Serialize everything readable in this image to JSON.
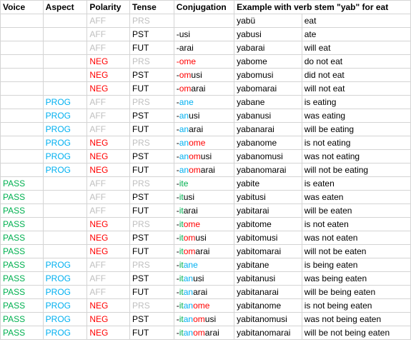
{
  "colors": {
    "pass": "#00b050",
    "prog": "#00b0f0",
    "neg": "#ff0000",
    "aff": "#bfbfbf",
    "prs": "#bfbfbf",
    "black": "#000000"
  },
  "headers": {
    "voice": "Voice",
    "aspect": "Aspect",
    "polarity": "Polarity",
    "tense": "Tense",
    "conjugation": "Conjugation",
    "example": "Example with verb stem \"yab\" for eat"
  },
  "rows": [
    {
      "voice": "",
      "aspect": "",
      "polarity": "AFF",
      "tense": "PRS",
      "conj": [],
      "example": "yabü",
      "gloss": "eat"
    },
    {
      "voice": "",
      "aspect": "",
      "polarity": "AFF",
      "tense": "PST",
      "conj": [
        [
          "-",
          "black"
        ],
        [
          "usi",
          "black"
        ]
      ],
      "example": "yabusi",
      "gloss": "ate"
    },
    {
      "voice": "",
      "aspect": "",
      "polarity": "AFF",
      "tense": "FUT",
      "conj": [
        [
          "-",
          "black"
        ],
        [
          "arai",
          "black"
        ]
      ],
      "example": "yabarai",
      "gloss": "will eat"
    },
    {
      "voice": "",
      "aspect": "",
      "polarity": "NEG",
      "tense": "PRS",
      "conj": [
        [
          "-",
          "neg"
        ],
        [
          "ome",
          "neg"
        ]
      ],
      "example": "yabome",
      "gloss": "do not eat"
    },
    {
      "voice": "",
      "aspect": "",
      "polarity": "NEG",
      "tense": "PST",
      "conj": [
        [
          "-",
          "black"
        ],
        [
          "om",
          "neg"
        ],
        [
          "usi",
          "black"
        ]
      ],
      "example": "yabomusi",
      "gloss": "did not eat"
    },
    {
      "voice": "",
      "aspect": "",
      "polarity": "NEG",
      "tense": "FUT",
      "conj": [
        [
          "-",
          "black"
        ],
        [
          "om",
          "neg"
        ],
        [
          "arai",
          "black"
        ]
      ],
      "example": "yabomarai",
      "gloss": "will not eat"
    },
    {
      "voice": "",
      "aspect": "PROG",
      "polarity": "AFF",
      "tense": "PRS",
      "conj": [
        [
          "-",
          "black"
        ],
        [
          "ane",
          "prog"
        ]
      ],
      "example": "yabane",
      "gloss": "is eating"
    },
    {
      "voice": "",
      "aspect": "PROG",
      "polarity": "AFF",
      "tense": "PST",
      "conj": [
        [
          "-",
          "black"
        ],
        [
          "an",
          "prog"
        ],
        [
          "usi",
          "black"
        ]
      ],
      "example": "yabanusi",
      "gloss": "was eating"
    },
    {
      "voice": "",
      "aspect": "PROG",
      "polarity": "AFF",
      "tense": "FUT",
      "conj": [
        [
          "-",
          "black"
        ],
        [
          "an",
          "prog"
        ],
        [
          "arai",
          "black"
        ]
      ],
      "example": "yabanarai",
      "gloss": "will be eating"
    },
    {
      "voice": "",
      "aspect": "PROG",
      "polarity": "NEG",
      "tense": "PRS",
      "conj": [
        [
          "-",
          "black"
        ],
        [
          "an",
          "prog"
        ],
        [
          "ome",
          "neg"
        ]
      ],
      "example": "yabanome",
      "gloss": "is not eating"
    },
    {
      "voice": "",
      "aspect": "PROG",
      "polarity": "NEG",
      "tense": "PST",
      "conj": [
        [
          "-",
          "black"
        ],
        [
          "an",
          "prog"
        ],
        [
          "om",
          "neg"
        ],
        [
          "usi",
          "black"
        ]
      ],
      "example": "yabanomusi",
      "gloss": "was not eating"
    },
    {
      "voice": "",
      "aspect": "PROG",
      "polarity": "NEG",
      "tense": "FUT",
      "conj": [
        [
          "-",
          "black"
        ],
        [
          "an",
          "prog"
        ],
        [
          "om",
          "neg"
        ],
        [
          "arai",
          "black"
        ]
      ],
      "example": "yabanomarai",
      "gloss": "will not be eating"
    },
    {
      "voice": "PASS",
      "aspect": "",
      "polarity": "AFF",
      "tense": "PRS",
      "conj": [
        [
          "-",
          "black"
        ],
        [
          "ite",
          "pass"
        ]
      ],
      "example": "yabite",
      "gloss": "is eaten"
    },
    {
      "voice": "PASS",
      "aspect": "",
      "polarity": "AFF",
      "tense": "PST",
      "conj": [
        [
          "-",
          "black"
        ],
        [
          "it",
          "pass"
        ],
        [
          "usi",
          "black"
        ]
      ],
      "example": "yabitusi",
      "gloss": "was eaten"
    },
    {
      "voice": "PASS",
      "aspect": "",
      "polarity": "AFF",
      "tense": "FUT",
      "conj": [
        [
          "-",
          "black"
        ],
        [
          "it",
          "pass"
        ],
        [
          "arai",
          "black"
        ]
      ],
      "example": "yabitarai",
      "gloss": "will be eaten"
    },
    {
      "voice": "PASS",
      "aspect": "",
      "polarity": "NEG",
      "tense": "PRS",
      "conj": [
        [
          "-",
          "black"
        ],
        [
          "it",
          "pass"
        ],
        [
          "ome",
          "neg"
        ]
      ],
      "example": "yabitome",
      "gloss": "is not eaten"
    },
    {
      "voice": "PASS",
      "aspect": "",
      "polarity": "NEG",
      "tense": "PST",
      "conj": [
        [
          "-",
          "black"
        ],
        [
          "it",
          "pass"
        ],
        [
          "om",
          "neg"
        ],
        [
          "usi",
          "black"
        ]
      ],
      "example": "yabitomusi",
      "gloss": "was not eaten"
    },
    {
      "voice": "PASS",
      "aspect": "",
      "polarity": "NEG",
      "tense": "FUT",
      "conj": [
        [
          "-",
          "black"
        ],
        [
          "it",
          "pass"
        ],
        [
          "om",
          "neg"
        ],
        [
          "arai",
          "black"
        ]
      ],
      "example": "yabitomarai",
      "gloss": "will not be eaten"
    },
    {
      "voice": "PASS",
      "aspect": "PROG",
      "polarity": "AFF",
      "tense": "PRS",
      "conj": [
        [
          "-",
          "black"
        ],
        [
          "it",
          "pass"
        ],
        [
          "ane",
          "prog"
        ]
      ],
      "example": "yabitane",
      "gloss": "is being eaten"
    },
    {
      "voice": "PASS",
      "aspect": "PROG",
      "polarity": "AFF",
      "tense": "PST",
      "conj": [
        [
          "-",
          "black"
        ],
        [
          "it",
          "pass"
        ],
        [
          "an",
          "prog"
        ],
        [
          "usi",
          "black"
        ]
      ],
      "example": "yabitanusi",
      "gloss": "was being eaten"
    },
    {
      "voice": "PASS",
      "aspect": "PROG",
      "polarity": "AFF",
      "tense": "FUT",
      "conj": [
        [
          "-",
          "black"
        ],
        [
          "it",
          "pass"
        ],
        [
          "an",
          "prog"
        ],
        [
          "arai",
          "black"
        ]
      ],
      "example": "yabitanarai",
      "gloss": "will be being eaten"
    },
    {
      "voice": "PASS",
      "aspect": "PROG",
      "polarity": "NEG",
      "tense": "PRS",
      "conj": [
        [
          "-",
          "black"
        ],
        [
          "it",
          "pass"
        ],
        [
          "an",
          "prog"
        ],
        [
          "ome",
          "neg"
        ]
      ],
      "example": "yabitanome",
      "gloss": "is not being eaten"
    },
    {
      "voice": "PASS",
      "aspect": "PROG",
      "polarity": "NEG",
      "tense": "PST",
      "conj": [
        [
          "-",
          "black"
        ],
        [
          "it",
          "pass"
        ],
        [
          "an",
          "prog"
        ],
        [
          "om",
          "neg"
        ],
        [
          "usi",
          "black"
        ]
      ],
      "example": "yabitanomusi",
      "gloss": "was not being eaten"
    },
    {
      "voice": "PASS",
      "aspect": "PROG",
      "polarity": "NEG",
      "tense": "FUT",
      "conj": [
        [
          "-",
          "black"
        ],
        [
          "it",
          "pass"
        ],
        [
          "an",
          "prog"
        ],
        [
          "om",
          "neg"
        ],
        [
          "arai",
          "black"
        ]
      ],
      "example": "yabitanomarai",
      "gloss": "will be not being eaten"
    }
  ]
}
